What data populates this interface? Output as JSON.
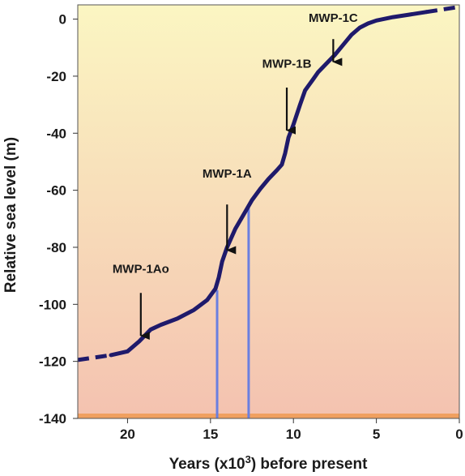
{
  "chart_data": {
    "type": "line",
    "title": "",
    "xlabel_prefix": "Years (x10",
    "xlabel_sup": "3",
    "xlabel_suffix": ") before present",
    "ylabel": "Relative sea level (m)",
    "xlim": [
      23,
      0
    ],
    "ylim": [
      -140,
      5
    ],
    "xticks": [
      20,
      15,
      10,
      5,
      0
    ],
    "xtick_labels": [
      "20",
      "15",
      "10",
      "5",
      "0"
    ],
    "yticks": [
      0,
      -20,
      -40,
      -60,
      -80,
      -100,
      -120,
      -140
    ],
    "ytick_labels": [
      "0",
      "-20",
      "-40",
      "-60",
      "-80",
      "-100",
      "-120",
      "-140"
    ],
    "grid": false,
    "background_gradient": [
      "#fbf6c2",
      "#f4c2b0"
    ],
    "floor_band_color": "#f0a060",
    "series": [
      {
        "color": "#1f1a6b",
        "dashed_start": [
          [
            23.0,
            -119.5
          ],
          [
            21.0,
            -117.8
          ]
        ],
        "values": [
          [
            21.0,
            -117.8
          ],
          [
            20.0,
            -116.5
          ],
          [
            19.3,
            -113.0
          ],
          [
            18.6,
            -108.8
          ],
          [
            18.0,
            -107.2
          ],
          [
            17.0,
            -105.0
          ],
          [
            16.0,
            -102.0
          ],
          [
            15.2,
            -98.5
          ],
          [
            14.7,
            -94.5
          ],
          [
            14.5,
            -90.5
          ],
          [
            14.3,
            -85.0
          ],
          [
            14.0,
            -80.0
          ],
          [
            13.5,
            -73.5
          ],
          [
            13.0,
            -68.5
          ],
          [
            12.5,
            -63.5
          ],
          [
            12.0,
            -59.5
          ],
          [
            11.5,
            -56.0
          ],
          [
            11.0,
            -53.0
          ],
          [
            10.7,
            -51.0
          ],
          [
            10.5,
            -47.0
          ],
          [
            10.3,
            -41.5
          ],
          [
            10.0,
            -37.0
          ],
          [
            9.6,
            -30.0
          ],
          [
            9.3,
            -25.0
          ],
          [
            8.8,
            -21.0
          ],
          [
            8.5,
            -18.5
          ],
          [
            8.0,
            -15.5
          ],
          [
            7.5,
            -12.5
          ],
          [
            7.0,
            -9.0
          ],
          [
            6.5,
            -5.5
          ],
          [
            6.0,
            -3.0
          ],
          [
            5.5,
            -1.5
          ],
          [
            5.0,
            -0.5
          ],
          [
            4.0,
            0.7
          ],
          [
            3.0,
            1.6
          ],
          [
            2.0,
            2.5
          ]
        ],
        "dashed_end": [
          [
            2.0,
            2.5
          ],
          [
            0.0,
            4.3
          ]
        ]
      }
    ],
    "vlines": [
      {
        "x": 14.6,
        "y_top": -95,
        "color": "#6a7fe0"
      },
      {
        "x": 12.7,
        "y_top": -66,
        "color": "#6a7fe0"
      }
    ],
    "annotations": [
      {
        "label": "MWP-1Ao",
        "x": 19.2,
        "y_label": -89,
        "y_arrow_start": -96,
        "y_arrow_end": -111
      },
      {
        "label": "MWP-1A",
        "x": 14.0,
        "y_label": -55.5,
        "y_arrow_start": -65,
        "y_arrow_end": -81
      },
      {
        "label": "MWP-1B",
        "x": 10.4,
        "y_label": -17,
        "y_arrow_start": -24,
        "y_arrow_end": -39
      },
      {
        "label": "MWP-1C",
        "x": 7.6,
        "y_label": -1,
        "y_arrow_start": -7,
        "y_arrow_end": -15
      }
    ]
  }
}
